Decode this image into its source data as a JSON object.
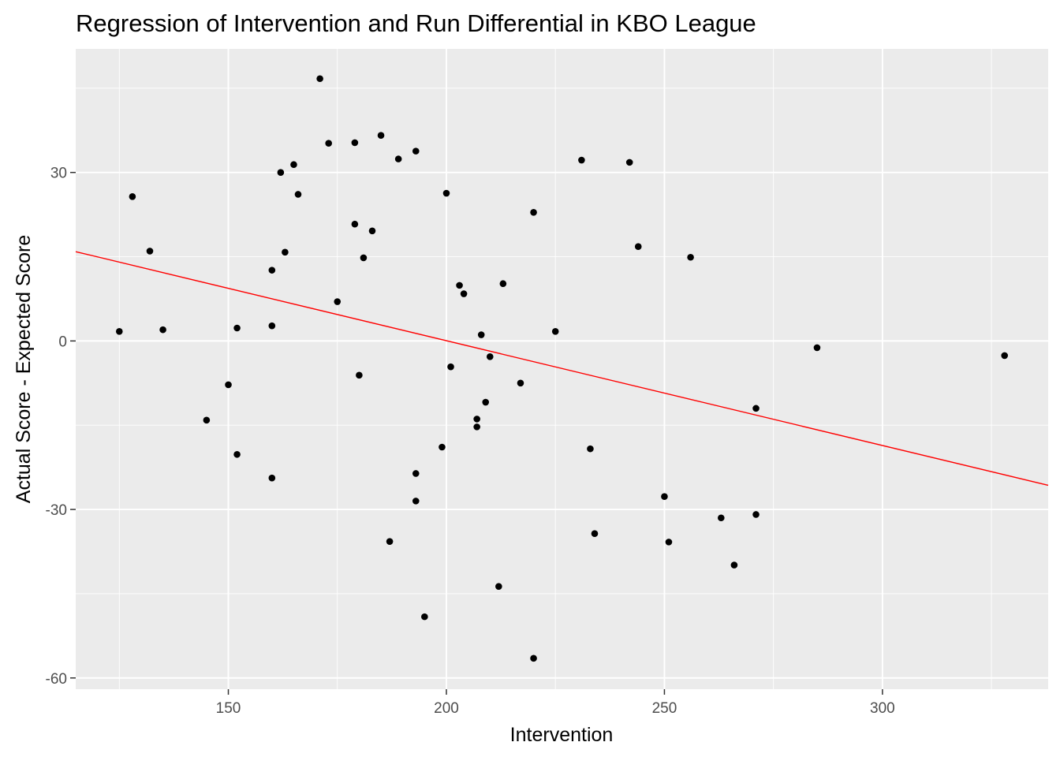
{
  "chart_data": {
    "type": "scatter",
    "title": "Regression of Intervention and Run Differential in KBO League",
    "xlabel": "Intervention",
    "ylabel": "Actual Score - Expected Score",
    "xlim": [
      115,
      338
    ],
    "ylim": [
      -62,
      52
    ],
    "x_ticks": [
      150,
      200,
      250,
      300
    ],
    "y_ticks": [
      -60,
      -30,
      0,
      30
    ],
    "x_tick_labels": [
      "150",
      "200",
      "250",
      "300"
    ],
    "y_tick_labels": [
      "-60",
      "-30",
      "0",
      "30"
    ],
    "grid": true,
    "legend": "none",
    "colors": {
      "panel_background": "#ebebeb",
      "grid_line": "#ffffff",
      "points": "#000000",
      "regression_line": "#ff0000"
    },
    "regression_line": {
      "x": [
        115,
        338
      ],
      "y": [
        15.9,
        -25.7
      ]
    },
    "points": [
      {
        "x": 125,
        "y": 1.7
      },
      {
        "x": 128,
        "y": 25.7
      },
      {
        "x": 132,
        "y": 16.0
      },
      {
        "x": 135,
        "y": 2.0
      },
      {
        "x": 145,
        "y": -14.1
      },
      {
        "x": 150,
        "y": -7.8
      },
      {
        "x": 152,
        "y": 2.3
      },
      {
        "x": 152,
        "y": -20.2
      },
      {
        "x": 160,
        "y": 12.6
      },
      {
        "x": 160,
        "y": 2.7
      },
      {
        "x": 160,
        "y": -24.4
      },
      {
        "x": 162,
        "y": 30.0
      },
      {
        "x": 163,
        "y": 15.8
      },
      {
        "x": 165,
        "y": 31.4
      },
      {
        "x": 166,
        "y": 26.1
      },
      {
        "x": 171,
        "y": 46.7
      },
      {
        "x": 173,
        "y": 35.2
      },
      {
        "x": 175,
        "y": 7.0
      },
      {
        "x": 179,
        "y": 35.3
      },
      {
        "x": 179,
        "y": 20.8
      },
      {
        "x": 180,
        "y": -6.1
      },
      {
        "x": 181,
        "y": 14.8
      },
      {
        "x": 183,
        "y": 19.6
      },
      {
        "x": 185,
        "y": 36.6
      },
      {
        "x": 187,
        "y": -35.7
      },
      {
        "x": 189,
        "y": 32.4
      },
      {
        "x": 193,
        "y": 33.8
      },
      {
        "x": 193,
        "y": -23.6
      },
      {
        "x": 193,
        "y": -28.5
      },
      {
        "x": 195,
        "y": -49.1
      },
      {
        "x": 199,
        "y": -18.9
      },
      {
        "x": 200,
        "y": 26.3
      },
      {
        "x": 201,
        "y": -4.6
      },
      {
        "x": 203,
        "y": 9.9
      },
      {
        "x": 204,
        "y": 8.4
      },
      {
        "x": 207,
        "y": -13.9
      },
      {
        "x": 207,
        "y": -15.3
      },
      {
        "x": 208,
        "y": 1.1
      },
      {
        "x": 209,
        "y": -10.9
      },
      {
        "x": 210,
        "y": -2.8
      },
      {
        "x": 212,
        "y": -43.7
      },
      {
        "x": 213,
        "y": 10.2
      },
      {
        "x": 217,
        "y": -7.5
      },
      {
        "x": 220,
        "y": 22.9
      },
      {
        "x": 220,
        "y": -56.5
      },
      {
        "x": 225,
        "y": 1.7
      },
      {
        "x": 231,
        "y": 32.2
      },
      {
        "x": 233,
        "y": -19.2
      },
      {
        "x": 234,
        "y": -34.3
      },
      {
        "x": 242,
        "y": 31.8
      },
      {
        "x": 244,
        "y": 16.8
      },
      {
        "x": 250,
        "y": -27.7
      },
      {
        "x": 251,
        "y": -35.8
      },
      {
        "x": 256,
        "y": 14.9
      },
      {
        "x": 263,
        "y": -31.5
      },
      {
        "x": 266,
        "y": -39.9
      },
      {
        "x": 271,
        "y": -12.0
      },
      {
        "x": 271,
        "y": -30.9
      },
      {
        "x": 285,
        "y": -1.2
      },
      {
        "x": 328,
        "y": -2.6
      }
    ]
  }
}
